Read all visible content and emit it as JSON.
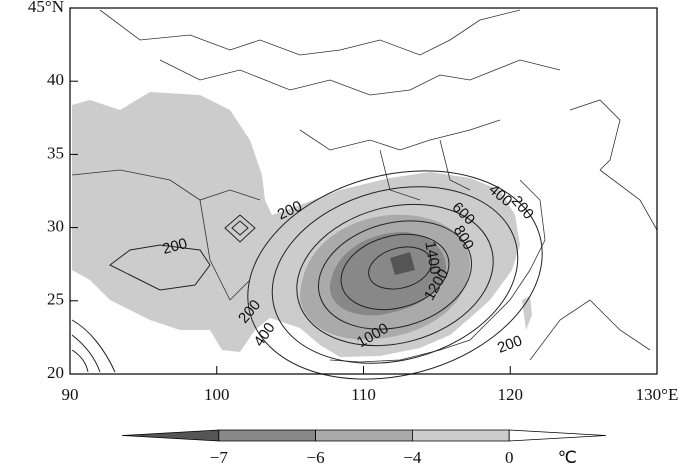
{
  "map": {
    "lon_ticks": [
      {
        "value": 90,
        "label": "90"
      },
      {
        "value": 100,
        "label": "100"
      },
      {
        "value": 110,
        "label": "110"
      },
      {
        "value": 120,
        "label": "120"
      },
      {
        "value": 130,
        "label": "130°E"
      }
    ],
    "lat_ticks": [
      {
        "value": 45,
        "label": "45°N"
      },
      {
        "value": 40,
        "label": "40"
      },
      {
        "value": 35,
        "label": "35"
      },
      {
        "value": 30,
        "label": "30"
      },
      {
        "value": 25,
        "label": "25"
      },
      {
        "value": 20,
        "label": "20"
      }
    ],
    "lon_range": [
      90,
      130
    ],
    "lat_range": [
      20,
      45
    ],
    "contour_labels": [
      200,
      200,
      400,
      200,
      600,
      800,
      1400,
      1200,
      1000,
      200,
      400,
      200
    ],
    "colorbar": {
      "levels": [
        {
          "value": -7,
          "label": "−7"
        },
        {
          "value": -6,
          "label": "−6"
        },
        {
          "value": -4,
          "label": "−4"
        },
        {
          "value": 0,
          "label": "0"
        }
      ],
      "colors": [
        "#555555",
        "#888888",
        "#aaaaaa",
        "#cccccc",
        "#ffffff"
      ],
      "unit": "℃"
    }
  }
}
